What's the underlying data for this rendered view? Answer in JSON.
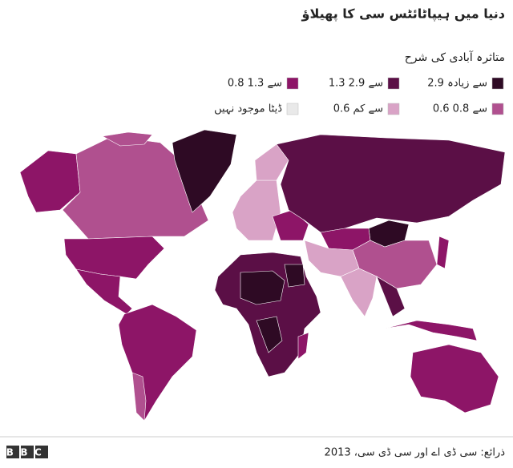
{
  "title": "دنیا میں ہیپاٹائٹس سی کا پھیلاؤ",
  "legend": {
    "title": "متاثرہ آبادی کی شرح",
    "items": [
      {
        "label": "2.9 سے زیادہ",
        "color": "#2e0a24"
      },
      {
        "label": "1.3 سے 2.9",
        "color": "#5b0f46"
      },
      {
        "label": "0.8 سے 1.3",
        "color": "#8d1567"
      },
      {
        "label": "0.6 سے 0.8",
        "color": "#b0508f"
      },
      {
        "label": "0.6 سے کم",
        "color": "#d9a3c6"
      },
      {
        "label": "ڈیٹا موجود نہیں",
        "color": "#e9e9e9"
      }
    ]
  },
  "footer": {
    "logo": "BBC",
    "source": "ذرائع: سی ڈی اے اور سی ڈی سی، 2013"
  }
}
